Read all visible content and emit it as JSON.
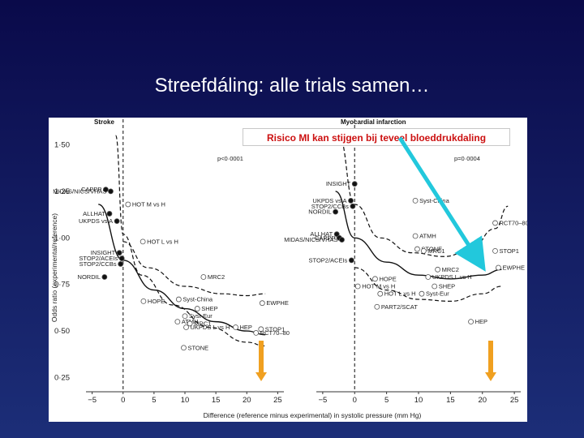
{
  "slide": {
    "title": "Streefdáling: alle trials samen…",
    "background_top": "#0a0a4a",
    "background_bottom": "#1c2e78"
  },
  "callout": {
    "text": "Risico MI kan stijgen bij teveel bloeddrukdaling",
    "color": "#cc1010"
  },
  "arrows": {
    "cyan": "#22c8dc",
    "orange": "#f0a020"
  },
  "figure": {
    "ylabel": "Odds ratio (experimental/reference)",
    "xlabel": "Difference (reference minus experimental) in systolic pressure (mm Hg)"
  },
  "chart_data": [
    {
      "type": "scatter",
      "title": "Stroke",
      "annotation": "p<0·0001",
      "xlim": [
        -6,
        26
      ],
      "ylim": [
        0.2,
        1.55
      ],
      "xticks": [
        -5,
        0,
        5,
        10,
        15,
        20,
        25
      ],
      "xtick_labels": [
        "−5",
        "0",
        "5",
        "10",
        "15",
        "20",
        "25"
      ],
      "yticks": [
        0.25,
        0.5,
        0.75,
        1.0,
        1.25,
        1.5
      ],
      "ytick_labels": [
        "0·25",
        "0·50",
        "0·75",
        "1·00",
        "1·25",
        "1·50"
      ],
      "reference_line_x": 0,
      "points": [
        {
          "label": "CAPPP",
          "x": -2.8,
          "y": 1.26,
          "filled": true
        },
        {
          "label": "MIDAS/NICS/VHAS",
          "x": -2.0,
          "y": 1.25,
          "filled": true
        },
        {
          "label": "HOT M vs H",
          "x": 0.8,
          "y": 1.18,
          "filled": false
        },
        {
          "label": "ALLHAT",
          "x": -2.2,
          "y": 1.13,
          "filled": true
        },
        {
          "label": "UKPDS vs A",
          "x": -1.0,
          "y": 1.09,
          "filled": true
        },
        {
          "label": "HOT L vs H",
          "x": 3.2,
          "y": 0.98,
          "filled": false
        },
        {
          "label": "INSIGHT",
          "x": -0.6,
          "y": 0.92,
          "filled": true
        },
        {
          "label": "STOP2/ACEIs",
          "x": -0.2,
          "y": 0.89,
          "filled": true
        },
        {
          "label": "STOP2/CCBs",
          "x": -0.4,
          "y": 0.86,
          "filled": true
        },
        {
          "label": "NORDIL",
          "x": -3.0,
          "y": 0.79,
          "filled": true
        },
        {
          "label": "MRC2",
          "x": 13.0,
          "y": 0.79,
          "filled": false
        },
        {
          "label": "HOPE",
          "x": 3.3,
          "y": 0.66,
          "filled": false
        },
        {
          "label": "Syst-China",
          "x": 9.0,
          "y": 0.67,
          "filled": false
        },
        {
          "label": "SHEP",
          "x": 12.0,
          "y": 0.62,
          "filled": false
        },
        {
          "label": "EWPHE",
          "x": 22.5,
          "y": 0.65,
          "filled": false
        },
        {
          "label": "Syst-Eur",
          "x": 10.0,
          "y": 0.58,
          "filled": false
        },
        {
          "label": "ATMH",
          "x": 8.8,
          "y": 0.55,
          "filled": false
        },
        {
          "label": "MRC1",
          "x": 10.8,
          "y": 0.54,
          "filled": false
        },
        {
          "label": "UKPDS L vs H",
          "x": 10.2,
          "y": 0.52,
          "filled": false
        },
        {
          "label": "HEP",
          "x": 18.2,
          "y": 0.52,
          "filled": false
        },
        {
          "label": "STOP1",
          "x": 22.3,
          "y": 0.51,
          "filled": false
        },
        {
          "label": "RCT70–80",
          "x": 21.5,
          "y": 0.49,
          "filled": false
        },
        {
          "label": "STONE",
          "x": 9.8,
          "y": 0.41,
          "filled": false
        }
      ]
    },
    {
      "type": "scatter",
      "title": "Myocardial infarction",
      "annotation": "p=0·0004",
      "xlim": [
        -6,
        26
      ],
      "ylim": [
        0.2,
        1.55
      ],
      "xticks": [
        -5,
        0,
        5,
        10,
        15,
        20,
        25
      ],
      "xtick_labels": [
        "−5",
        "0",
        "5",
        "10",
        "15",
        "20",
        "25"
      ],
      "reference_line_x": 0,
      "points": [
        {
          "label": "INSIGHT",
          "x": 0.0,
          "y": 1.29,
          "filled": true
        },
        {
          "label": "UKPDS vs A",
          "x": -0.6,
          "y": 1.2,
          "filled": true
        },
        {
          "label": "STOP2/CCBs",
          "x": -0.3,
          "y": 1.17,
          "filled": true
        },
        {
          "label": "NORDIL",
          "x": -3.0,
          "y": 1.14,
          "filled": true
        },
        {
          "label": "Syst-China",
          "x": 9.5,
          "y": 1.2,
          "filled": false
        },
        {
          "label": "RCT70–80",
          "x": 22.0,
          "y": 1.08,
          "filled": false
        },
        {
          "label": "ALLHAT",
          "x": -2.8,
          "y": 1.02,
          "filled": true
        },
        {
          "label": "CAPPP",
          "x": -2.4,
          "y": 1.0,
          "filled": true
        },
        {
          "label": "MIDAS/NICS/VHAS",
          "x": -2.0,
          "y": 0.99,
          "filled": true
        },
        {
          "label": "ATMH",
          "x": 9.5,
          "y": 1.01,
          "filled": false
        },
        {
          "label": "STONE",
          "x": 9.8,
          "y": 0.94,
          "filled": false
        },
        {
          "label": "MRC1",
          "x": 10.8,
          "y": 0.93,
          "filled": false
        },
        {
          "label": "STOP1",
          "x": 22.0,
          "y": 0.93,
          "filled": false
        },
        {
          "label": "STOP2/ACEIs",
          "x": -0.5,
          "y": 0.88,
          "filled": true
        },
        {
          "label": "MRC2",
          "x": 13.0,
          "y": 0.83,
          "filled": false
        },
        {
          "label": "EWPHE",
          "x": 22.5,
          "y": 0.84,
          "filled": false
        },
        {
          "label": "HOPE",
          "x": 3.2,
          "y": 0.78,
          "filled": false
        },
        {
          "label": "UKPDS L vs H",
          "x": 11.5,
          "y": 0.79,
          "filled": false
        },
        {
          "label": "HOT M vs H",
          "x": 0.5,
          "y": 0.74,
          "filled": false
        },
        {
          "label": "SHEP",
          "x": 12.5,
          "y": 0.74,
          "filled": false
        },
        {
          "label": "HOT L vs H",
          "x": 4.0,
          "y": 0.7,
          "filled": false
        },
        {
          "label": "Syst-Eur",
          "x": 10.5,
          "y": 0.7,
          "filled": false
        },
        {
          "label": "PART2/SCAT",
          "x": 3.5,
          "y": 0.63,
          "filled": false
        },
        {
          "label": "HEP",
          "x": 18.2,
          "y": 0.55,
          "filled": false
        }
      ]
    }
  ]
}
